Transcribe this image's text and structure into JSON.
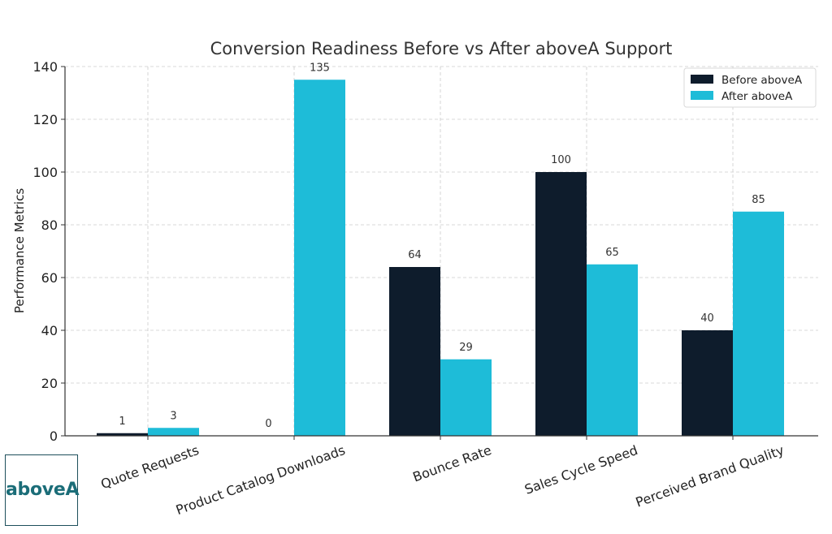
{
  "chart_data": {
    "type": "bar",
    "title": "Conversion Readiness Before vs After aboveA Support",
    "xlabel": "",
    "ylabel": "Performance Metrics",
    "categories": [
      "Quote Requests",
      "Product Catalog Downloads",
      "Bounce Rate",
      "Sales Cycle Speed",
      "Perceived Brand Quality"
    ],
    "series": [
      {
        "name": "Before aboveA",
        "values": [
          1,
          0,
          64,
          100,
          40
        ],
        "color": "#0e1c2c"
      },
      {
        "name": "After aboveA",
        "values": [
          3,
          135,
          29,
          65,
          85
        ],
        "color": "#1ebcd8"
      }
    ],
    "ylim": [
      0,
      140
    ],
    "yticks": [
      0,
      20,
      40,
      60,
      80,
      100,
      120,
      140
    ],
    "grid": true,
    "legend": "top-right"
  },
  "logo": {
    "text": "aboveA"
  }
}
